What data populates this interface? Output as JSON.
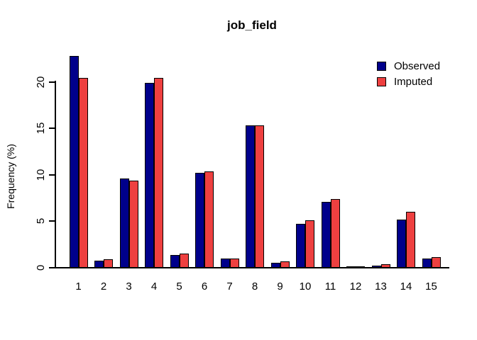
{
  "title": "job_field",
  "ylabel": "Frequency (%)",
  "legend": {
    "observed_label": "Observed",
    "imputed_label": "Imputed"
  },
  "colors": {
    "observed": "#00008B",
    "imputed": "#EE4040",
    "axis": "#000000",
    "background": "#FFFFFF"
  },
  "chart_data": {
    "type": "bar",
    "title": "job_field",
    "xlabel": "",
    "ylabel": "Frequency (%)",
    "categories": [
      "1",
      "2",
      "3",
      "4",
      "5",
      "6",
      "7",
      "8",
      "9",
      "10",
      "11",
      "12",
      "13",
      "14",
      "15"
    ],
    "series": [
      {
        "name": "Observed",
        "color": "#00008B",
        "values": [
          22.8,
          0.8,
          9.6,
          19.9,
          1.4,
          10.2,
          1.0,
          15.3,
          0.55,
          4.7,
          7.1,
          0.05,
          0.25,
          5.2,
          1.0
        ]
      },
      {
        "name": "Imputed",
        "color": "#EE4040",
        "values": [
          20.4,
          0.9,
          9.4,
          20.4,
          1.5,
          10.4,
          1.0,
          15.3,
          0.65,
          5.1,
          7.4,
          0.05,
          0.35,
          6.0,
          1.15
        ]
      }
    ],
    "yticks": [
      0,
      5,
      10,
      15,
      20
    ],
    "ylim": [
      0,
      20
    ],
    "grid": false,
    "legend_position": "top-right",
    "bar_outline": "#000000"
  }
}
